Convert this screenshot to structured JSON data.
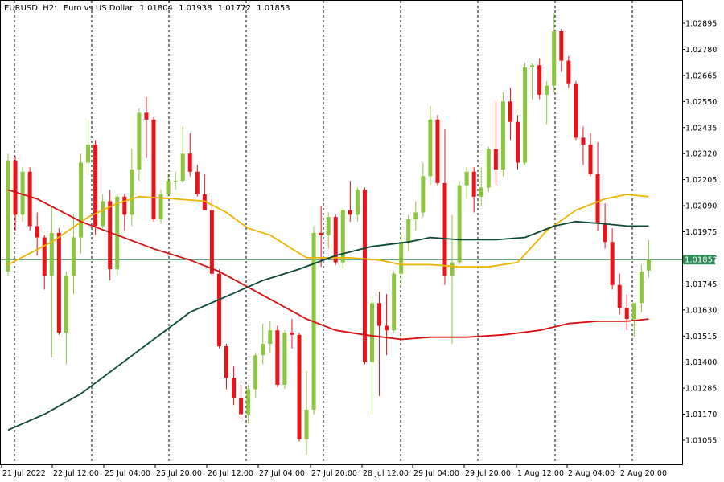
{
  "header": {
    "symbol": "EURUSD, H2:",
    "description": "Euro vs US Dollar",
    "open": "1.01804",
    "high": "1.01938",
    "low": "1.01772",
    "close": "1.01853"
  },
  "chart_data": {
    "type": "candlestick",
    "price_axis": {
      "ticks": [
        "1.02895",
        "1.02780",
        "1.02665",
        "1.02550",
        "1.02435",
        "1.02320",
        "1.02205",
        "1.02090",
        "1.01975",
        "1.01860",
        "1.01745",
        "1.01630",
        "1.01515",
        "1.01400",
        "1.01285",
        "1.01170",
        "1.01055"
      ],
      "range": [
        1.00945,
        1.0303
      ]
    },
    "time_axis": {
      "labels": [
        "21 Jul 2022",
        "22 Jul 12:00",
        "25 Jul 04:00",
        "25 Jul 20:00",
        "26 Jul 12:00",
        "27 Jul 04:00",
        "27 Jul 20:00",
        "28 Jul 12:00",
        "29 Jul 04:00",
        "29 Jul 20:00",
        "1 Aug 12:00",
        "2 Aug 04:00",
        "2 Aug 20:00"
      ]
    },
    "current_price": {
      "label": "1.01852",
      "value": 1.01852,
      "line_color": "#2e8b57"
    },
    "colors": {
      "bull": "#8cc63f",
      "bear": "#e8141a",
      "ma_fast": "#f0b400",
      "ma_mid": "#d51010",
      "ma_slow": "#0b4a35",
      "grid": "#000000"
    },
    "candles": [
      [
        1.018,
        1.0232,
        1.0178,
        1.0229
      ],
      [
        1.0229,
        1.0231,
        1.0198,
        1.0205
      ],
      [
        1.0205,
        1.0226,
        1.0202,
        1.0224
      ],
      [
        1.0224,
        1.0226,
        1.0198,
        1.02
      ],
      [
        1.02,
        1.0206,
        1.0187,
        1.0195
      ],
      [
        1.0195,
        1.0196,
        1.0172,
        1.0178
      ],
      [
        1.0178,
        1.0209,
        1.0142,
        1.0197
      ],
      [
        1.0197,
        1.0199,
        1.0152,
        1.0153
      ],
      [
        1.0153,
        1.018,
        1.0139,
        1.0178
      ],
      [
        1.0178,
        1.0205,
        1.017,
        1.0195
      ],
      [
        1.0195,
        1.0232,
        1.0188,
        1.0228
      ],
      [
        1.0228,
        1.0247,
        1.0223,
        1.0236
      ],
      [
        1.0236,
        1.0238,
        1.0196,
        1.02
      ],
      [
        1.02,
        1.0214,
        1.0199,
        1.0211
      ],
      [
        1.0211,
        1.0216,
        1.0176,
        1.0181
      ],
      [
        1.0181,
        1.0214,
        1.0178,
        1.0213
      ],
      [
        1.0213,
        1.0214,
        1.0198,
        1.0205
      ],
      [
        1.0205,
        1.0234,
        1.02,
        1.0225
      ],
      [
        1.0225,
        1.0252,
        1.022,
        1.025
      ],
      [
        1.025,
        1.0257,
        1.023,
        1.0247
      ],
      [
        1.0247,
        1.0248,
        1.0202,
        1.0203
      ],
      [
        1.0203,
        1.0216,
        1.0201,
        1.0214
      ],
      [
        1.0214,
        1.0223,
        1.0213,
        1.022
      ],
      [
        1.022,
        1.0224,
        1.0216,
        1.022
      ],
      [
        1.022,
        1.0244,
        1.0219,
        1.0232
      ],
      [
        1.0232,
        1.0241,
        1.0222,
        1.0224
      ],
      [
        1.0224,
        1.0227,
        1.0213,
        1.0214
      ],
      [
        1.0214,
        1.0223,
        1.0207,
        1.0207
      ],
      [
        1.0207,
        1.0212,
        1.0178,
        1.0179
      ],
      [
        1.0179,
        1.0181,
        1.0146,
        1.0147
      ],
      [
        1.0147,
        1.0148,
        1.0128,
        1.0133
      ],
      [
        1.0133,
        1.0138,
        1.0121,
        1.0124
      ],
      [
        1.0124,
        1.013,
        1.0115,
        1.0117
      ],
      [
        1.0117,
        1.013,
        1.0113,
        1.0128
      ],
      [
        1.0128,
        1.0144,
        1.0124,
        1.0143
      ],
      [
        1.0143,
        1.0157,
        1.0139,
        1.0148
      ],
      [
        1.0148,
        1.0158,
        1.0144,
        1.0154
      ],
      [
        1.0154,
        1.0156,
        1.0129,
        1.013
      ],
      [
        1.013,
        1.0154,
        1.0128,
        1.0153
      ],
      [
        1.0153,
        1.0159,
        1.0146,
        1.0152
      ],
      [
        1.0152,
        1.0153,
        1.0105,
        1.0106
      ],
      [
        1.0106,
        1.0136,
        1.0099,
        1.0119
      ],
      [
        1.0119,
        1.02,
        1.0117,
        1.0197
      ],
      [
        1.0197,
        1.0209,
        1.0182,
        1.0196
      ],
      [
        1.0196,
        1.0206,
        1.019,
        1.0204
      ],
      [
        1.0204,
        1.0205,
        1.0183,
        1.0184
      ],
      [
        1.0184,
        1.0208,
        1.0181,
        1.0207
      ],
      [
        1.0207,
        1.022,
        1.0202,
        1.0205
      ],
      [
        1.0205,
        1.0217,
        1.0202,
        1.0216
      ],
      [
        1.0216,
        1.0217,
        1.0139,
        1.014
      ],
      [
        1.014,
        1.0169,
        1.0117,
        1.0166
      ],
      [
        1.0166,
        1.0171,
        1.0125,
        1.0156
      ],
      [
        1.0156,
        1.017,
        1.0143,
        1.0154
      ],
      [
        1.0154,
        1.018,
        1.0153,
        1.0179
      ],
      [
        1.0179,
        1.0197,
        1.0173,
        1.0193
      ],
      [
        1.0193,
        1.0205,
        1.0189,
        1.0203
      ],
      [
        1.0203,
        1.0211,
        1.0198,
        1.0206
      ],
      [
        1.0206,
        1.0228,
        1.0204,
        1.0222
      ],
      [
        1.0222,
        1.0253,
        1.0218,
        1.0247
      ],
      [
        1.0247,
        1.0249,
        1.0218,
        1.0219
      ],
      [
        1.0219,
        1.0243,
        1.0174,
        1.0178
      ],
      [
        1.0178,
        1.0205,
        1.0148,
        1.0184
      ],
      [
        1.0184,
        1.022,
        1.0183,
        1.0218
      ],
      [
        1.0218,
        1.0226,
        1.0212,
        1.0224
      ],
      [
        1.0224,
        1.0226,
        1.0206,
        1.0213
      ],
      [
        1.0213,
        1.0226,
        1.0209,
        1.0217
      ],
      [
        1.0217,
        1.0235,
        1.0215,
        1.0234
      ],
      [
        1.0234,
        1.0255,
        1.0218,
        1.0225
      ],
      [
        1.0225,
        1.0259,
        1.0222,
        1.0255
      ],
      [
        1.0255,
        1.0261,
        1.0238,
        1.0246
      ],
      [
        1.0246,
        1.0249,
        1.0225,
        1.0228
      ],
      [
        1.0228,
        1.0272,
        1.0227,
        1.027
      ],
      [
        1.027,
        1.0272,
        1.0256,
        1.0271
      ],
      [
        1.0271,
        1.0274,
        1.0256,
        1.0258
      ],
      [
        1.0258,
        1.0264,
        1.0245,
        1.0262
      ],
      [
        1.0262,
        1.0294,
        1.0259,
        1.0286
      ],
      [
        1.0286,
        1.0287,
        1.0268,
        1.0273
      ],
      [
        1.0273,
        1.0275,
        1.0261,
        1.0263
      ],
      [
        1.0263,
        1.0264,
        1.0238,
        1.0239
      ],
      [
        1.0239,
        1.0244,
        1.0227,
        1.0236
      ],
      [
        1.0236,
        1.0241,
        1.0222,
        1.0223
      ],
      [
        1.0223,
        1.0237,
        1.0198,
        1.0201
      ],
      [
        1.0201,
        1.021,
        1.019,
        1.0193
      ],
      [
        1.0193,
        1.0199,
        1.0172,
        1.0174
      ],
      [
        1.0174,
        1.0179,
        1.0161,
        1.0164
      ],
      [
        1.0164,
        1.017,
        1.0154,
        1.0159
      ],
      [
        1.0159,
        1.0166,
        1.0151,
        1.0166
      ],
      [
        1.0166,
        1.0183,
        1.0162,
        1.018
      ],
      [
        1.01804,
        1.01938,
        1.01772,
        1.01853
      ]
    ],
    "moving_averages": [
      {
        "key": "ma_fast",
        "points": [
          [
            0,
            1.0183
          ],
          [
            6,
            1.0193
          ],
          [
            11,
            1.0204
          ],
          [
            15,
            1.021
          ],
          [
            18,
            1.0213
          ],
          [
            23,
            1.0212
          ],
          [
            27,
            1.0211
          ],
          [
            30,
            1.0206
          ],
          [
            33,
            1.0199
          ],
          [
            36,
            1.0196
          ],
          [
            38,
            1.0192
          ],
          [
            41,
            1.0186
          ],
          [
            47,
            1.0186
          ],
          [
            51,
            1.0185
          ],
          [
            54,
            1.0183
          ],
          [
            58,
            1.0183
          ],
          [
            62,
            1.0182
          ],
          [
            66,
            1.0182
          ],
          [
            70,
            1.0184
          ],
          [
            74,
            1.0198
          ],
          [
            78,
            1.0207
          ],
          [
            82,
            1.0212
          ],
          [
            85,
            1.0214
          ],
          [
            88,
            1.0213
          ]
        ]
      },
      {
        "key": "ma_mid",
        "points": [
          [
            0,
            1.0216
          ],
          [
            4,
            1.0212
          ],
          [
            10,
            1.0202
          ],
          [
            15,
            1.0196
          ],
          [
            20,
            1.019
          ],
          [
            25,
            1.0185
          ],
          [
            29,
            1.018
          ],
          [
            33,
            1.0173
          ],
          [
            37,
            1.0166
          ],
          [
            41,
            1.0159
          ],
          [
            45,
            1.0154
          ],
          [
            49,
            1.0152
          ],
          [
            54,
            1.015
          ],
          [
            58,
            1.0151
          ],
          [
            63,
            1.0151
          ],
          [
            68,
            1.0152
          ],
          [
            73,
            1.0154
          ],
          [
            77,
            1.0157
          ],
          [
            81,
            1.0158
          ],
          [
            85,
            1.0158
          ],
          [
            88,
            1.0159
          ]
        ]
      },
      {
        "key": "ma_slow",
        "points": [
          [
            0,
            1.011
          ],
          [
            5,
            1.0117
          ],
          [
            10,
            1.0126
          ],
          [
            15,
            1.0138
          ],
          [
            20,
            1.015
          ],
          [
            25,
            1.0162
          ],
          [
            30,
            1.0169
          ],
          [
            35,
            1.0176
          ],
          [
            40,
            1.0181
          ],
          [
            45,
            1.0187
          ],
          [
            50,
            1.0191
          ],
          [
            55,
            1.0193
          ],
          [
            58,
            1.0195
          ],
          [
            62,
            1.0194
          ],
          [
            67,
            1.0194
          ],
          [
            71,
            1.0195
          ],
          [
            75,
            1.02
          ],
          [
            78,
            1.0202
          ],
          [
            82,
            1.0201
          ],
          [
            85,
            1.02
          ],
          [
            88,
            1.02
          ]
        ]
      }
    ]
  }
}
